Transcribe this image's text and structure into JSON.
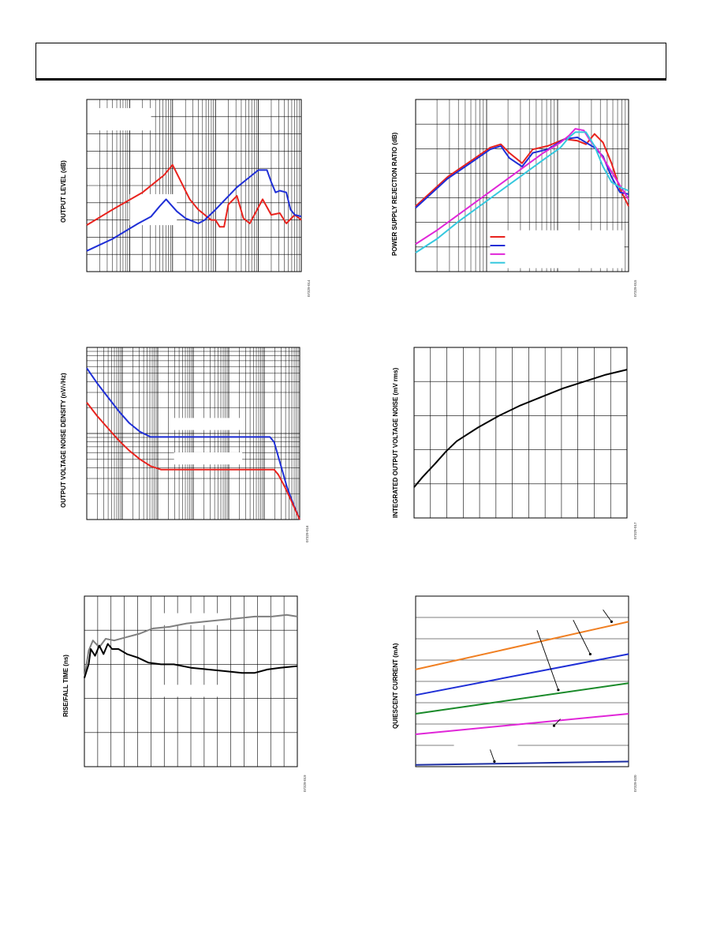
{
  "page": {
    "header_text": ""
  },
  "colors": {
    "red": "#e8231e",
    "blue": "#1f2fd6",
    "magenta": "#e026d8",
    "cyan": "#36c8de",
    "black": "#000000",
    "gray": "#7f7f7f",
    "orange": "#f07f22",
    "green": "#1a8a2a",
    "navy": "#1b2ca0"
  },
  "chart_data": [
    {
      "id": "c1",
      "type": "line",
      "ylabel": "OUTPUT LEVEL (dB)",
      "figure_id": "07329-014",
      "xscale": "log",
      "xlim": [
        0,
        1
      ],
      "ylim": [
        0,
        10
      ],
      "series": [
        {
          "color": "red",
          "points": [
            [
              0,
              2.7
            ],
            [
              0.12,
              3.6
            ],
            [
              0.26,
              4.6
            ],
            [
              0.36,
              5.6
            ],
            [
              0.4,
              6.2
            ],
            [
              0.44,
              5.2
            ],
            [
              0.48,
              4.2
            ],
            [
              0.52,
              3.6
            ],
            [
              0.55,
              3.3
            ],
            [
              0.58,
              3.0
            ],
            [
              0.6,
              3.0
            ],
            [
              0.62,
              2.6
            ],
            [
              0.64,
              2.6
            ],
            [
              0.66,
              3.9
            ],
            [
              0.7,
              4.4
            ],
            [
              0.73,
              3.1
            ],
            [
              0.76,
              2.8
            ],
            [
              0.79,
              3.5
            ],
            [
              0.82,
              4.2
            ],
            [
              0.86,
              3.3
            ],
            [
              0.9,
              3.4
            ],
            [
              0.93,
              2.8
            ],
            [
              0.97,
              3.3
            ],
            [
              1,
              3.0
            ]
          ]
        },
        {
          "color": "blue",
          "points": [
            [
              0,
              1.2
            ],
            [
              0.12,
              1.9
            ],
            [
              0.24,
              2.8
            ],
            [
              0.3,
              3.2
            ],
            [
              0.34,
              3.8
            ],
            [
              0.37,
              4.2
            ],
            [
              0.42,
              3.5
            ],
            [
              0.46,
              3.1
            ],
            [
              0.5,
              2.9
            ],
            [
              0.52,
              2.8
            ],
            [
              0.55,
              3.0
            ],
            [
              0.6,
              3.6
            ],
            [
              0.7,
              4.9
            ],
            [
              0.76,
              5.5
            ],
            [
              0.8,
              5.9
            ],
            [
              0.84,
              5.9
            ],
            [
              0.86,
              5.2
            ],
            [
              0.88,
              4.6
            ],
            [
              0.9,
              4.7
            ],
            [
              0.93,
              4.6
            ],
            [
              0.95,
              3.6
            ],
            [
              0.97,
              3.3
            ],
            [
              1,
              3.2
            ]
          ]
        }
      ]
    },
    {
      "id": "c2",
      "type": "line",
      "ylabel": "POWER SUPPLY REJECTION RATIO (dB)",
      "figure_id": "07329-015",
      "xscale": "log",
      "xlim": [
        0,
        1
      ],
      "ylim": [
        0,
        10
      ],
      "legend": "bottom-right",
      "series": [
        {
          "color": "red",
          "points": [
            [
              0,
              3.8
            ],
            [
              0.15,
              5.5
            ],
            [
              0.28,
              6.6
            ],
            [
              0.35,
              7.2
            ],
            [
              0.4,
              7.4
            ],
            [
              0.44,
              6.9
            ],
            [
              0.5,
              6.3
            ],
            [
              0.55,
              7.1
            ],
            [
              0.62,
              7.3
            ],
            [
              0.7,
              7.7
            ],
            [
              0.76,
              7.6
            ],
            [
              0.8,
              7.4
            ],
            [
              0.84,
              8.0
            ],
            [
              0.88,
              7.5
            ],
            [
              0.92,
              6.3
            ],
            [
              0.96,
              4.8
            ],
            [
              1,
              3.8
            ]
          ]
        },
        {
          "color": "blue",
          "points": [
            [
              0,
              3.7
            ],
            [
              0.15,
              5.4
            ],
            [
              0.28,
              6.5
            ],
            [
              0.35,
              7.1
            ],
            [
              0.4,
              7.3
            ],
            [
              0.44,
              6.6
            ],
            [
              0.5,
              6.1
            ],
            [
              0.55,
              6.9
            ],
            [
              0.62,
              7.1
            ],
            [
              0.7,
              7.7
            ],
            [
              0.76,
              7.8
            ],
            [
              0.8,
              7.5
            ],
            [
              0.84,
              7.2
            ],
            [
              0.88,
              6.7
            ],
            [
              0.92,
              5.5
            ],
            [
              0.96,
              4.6
            ],
            [
              1,
              4.5
            ]
          ]
        },
        {
          "color": "magenta",
          "points": [
            [
              0,
              1.6
            ],
            [
              0.1,
              2.4
            ],
            [
              0.2,
              3.3
            ],
            [
              0.3,
              4.2
            ],
            [
              0.4,
              5.1
            ],
            [
              0.5,
              6.0
            ],
            [
              0.6,
              6.9
            ],
            [
              0.68,
              7.5
            ],
            [
              0.72,
              7.9
            ],
            [
              0.75,
              8.3
            ],
            [
              0.79,
              8.2
            ],
            [
              0.82,
              7.6
            ],
            [
              0.86,
              7.0
            ],
            [
              0.9,
              6.2
            ],
            [
              0.94,
              5.4
            ],
            [
              1,
              4.2
            ]
          ]
        },
        {
          "color": "cyan",
          "points": [
            [
              0,
              1.1
            ],
            [
              0.1,
              1.9
            ],
            [
              0.2,
              2.9
            ],
            [
              0.3,
              3.8
            ],
            [
              0.4,
              4.7
            ],
            [
              0.5,
              5.6
            ],
            [
              0.6,
              6.5
            ],
            [
              0.68,
              7.2
            ],
            [
              0.72,
              7.8
            ],
            [
              0.75,
              8.1
            ],
            [
              0.8,
              8.1
            ],
            [
              0.84,
              7.3
            ],
            [
              0.88,
              6.1
            ],
            [
              0.92,
              5.2
            ],
            [
              0.96,
              4.9
            ],
            [
              1,
              4.7
            ]
          ]
        }
      ]
    },
    {
      "id": "c3",
      "type": "line",
      "ylabel": "OUTPUT VOLTAGE NOISE DENSITY (nV/√Hz)",
      "figure_id": "07329-016",
      "xscale": "log",
      "yscale": "log",
      "xlim": [
        0,
        1
      ],
      "ylim": [
        0,
        10
      ],
      "series": [
        {
          "color": "blue",
          "points": [
            [
              0,
              8.8
            ],
            [
              0.05,
              7.9
            ],
            [
              0.1,
              7.1
            ],
            [
              0.15,
              6.3
            ],
            [
              0.2,
              5.6
            ],
            [
              0.25,
              5.1
            ],
            [
              0.3,
              4.8
            ],
            [
              0.35,
              4.8
            ],
            [
              0.4,
              4.8
            ],
            [
              0.5,
              4.8
            ],
            [
              0.6,
              4.8
            ],
            [
              0.7,
              4.8
            ],
            [
              0.8,
              4.8
            ],
            [
              0.86,
              4.8
            ],
            [
              0.88,
              4.5
            ],
            [
              0.91,
              3.2
            ],
            [
              0.94,
              1.9
            ],
            [
              0.97,
              0.9
            ],
            [
              1,
              0
            ]
          ]
        },
        {
          "color": "red",
          "points": [
            [
              0,
              6.8
            ],
            [
              0.05,
              6.0
            ],
            [
              0.1,
              5.3
            ],
            [
              0.15,
              4.6
            ],
            [
              0.2,
              4.0
            ],
            [
              0.25,
              3.5
            ],
            [
              0.3,
              3.1
            ],
            [
              0.35,
              2.9
            ],
            [
              0.4,
              2.9
            ],
            [
              0.5,
              2.9
            ],
            [
              0.6,
              2.9
            ],
            [
              0.7,
              2.9
            ],
            [
              0.8,
              2.9
            ],
            [
              0.88,
              2.9
            ],
            [
              0.9,
              2.6
            ],
            [
              0.93,
              1.9
            ],
            [
              0.96,
              1.1
            ],
            [
              1,
              0
            ]
          ]
        }
      ]
    },
    {
      "id": "c4",
      "type": "line",
      "ylabel": "INTEGRATED OUTPUT VOLTAGE NOISE (mV rms)",
      "figure_id": "07329-017",
      "xscale": "log",
      "xlim": [
        0,
        1
      ],
      "ylim": [
        0,
        10
      ],
      "series": [
        {
          "color": "black",
          "points": [
            [
              0,
              1.8
            ],
            [
              0.04,
              2.4
            ],
            [
              0.1,
              3.2
            ],
            [
              0.15,
              3.9
            ],
            [
              0.2,
              4.5
            ],
            [
              0.3,
              5.3
            ],
            [
              0.4,
              6.0
            ],
            [
              0.5,
              6.6
            ],
            [
              0.6,
              7.1
            ],
            [
              0.7,
              7.6
            ],
            [
              0.8,
              8.0
            ],
            [
              0.9,
              8.4
            ],
            [
              1,
              8.7
            ]
          ]
        }
      ]
    },
    {
      "id": "c5",
      "type": "line",
      "ylabel": "RISE/FALL TIME (ns)",
      "figure_id": "07329-019",
      "xlim": [
        0,
        1
      ],
      "ylim": [
        0,
        10
      ],
      "series": [
        {
          "color": "gray",
          "points": [
            [
              0,
              5.2
            ],
            [
              0.02,
              6.8
            ],
            [
              0.04,
              7.4
            ],
            [
              0.07,
              7.0
            ],
            [
              0.1,
              7.5
            ],
            [
              0.14,
              7.4
            ],
            [
              0.2,
              7.6
            ],
            [
              0.26,
              7.8
            ],
            [
              0.32,
              8.1
            ],
            [
              0.4,
              8.2
            ],
            [
              0.48,
              8.4
            ],
            [
              0.56,
              8.5
            ],
            [
              0.64,
              8.6
            ],
            [
              0.72,
              8.7
            ],
            [
              0.8,
              8.8
            ],
            [
              0.88,
              8.8
            ],
            [
              0.95,
              8.9
            ],
            [
              1,
              8.8
            ]
          ]
        },
        {
          "color": "black",
          "points": [
            [
              0,
              5.2
            ],
            [
              0.02,
              6.0
            ],
            [
              0.03,
              6.9
            ],
            [
              0.05,
              6.5
            ],
            [
              0.07,
              7.1
            ],
            [
              0.09,
              6.6
            ],
            [
              0.11,
              7.2
            ],
            [
              0.13,
              6.9
            ],
            [
              0.16,
              6.9
            ],
            [
              0.2,
              6.6
            ],
            [
              0.25,
              6.4
            ],
            [
              0.3,
              6.1
            ],
            [
              0.36,
              6.0
            ],
            [
              0.42,
              6.0
            ],
            [
              0.5,
              5.8
            ],
            [
              0.58,
              5.7
            ],
            [
              0.66,
              5.6
            ],
            [
              0.74,
              5.5
            ],
            [
              0.8,
              5.5
            ],
            [
              0.86,
              5.7
            ],
            [
              0.92,
              5.8
            ],
            [
              1,
              5.9
            ]
          ]
        }
      ]
    },
    {
      "id": "c6",
      "type": "line",
      "ylabel": "QUIESCENT CURRENT (mA)",
      "figure_id": "07329-020",
      "xlim": [
        0,
        1
      ],
      "ylim": [
        0,
        10
      ],
      "series": [
        {
          "color": "orange",
          "points": [
            [
              0,
              5.7
            ],
            [
              1,
              8.5
            ]
          ]
        },
        {
          "color": "blue",
          "points": [
            [
              0,
              4.2
            ],
            [
              1,
              6.6
            ]
          ]
        },
        {
          "color": "green",
          "points": [
            [
              0,
              3.1
            ],
            [
              1,
              4.9
            ]
          ]
        },
        {
          "color": "magenta",
          "points": [
            [
              0,
              1.9
            ],
            [
              1,
              3.1
            ]
          ]
        },
        {
          "color": "navy",
          "points": [
            [
              0,
              0.1
            ],
            [
              1,
              0.3
            ]
          ]
        }
      ]
    }
  ]
}
